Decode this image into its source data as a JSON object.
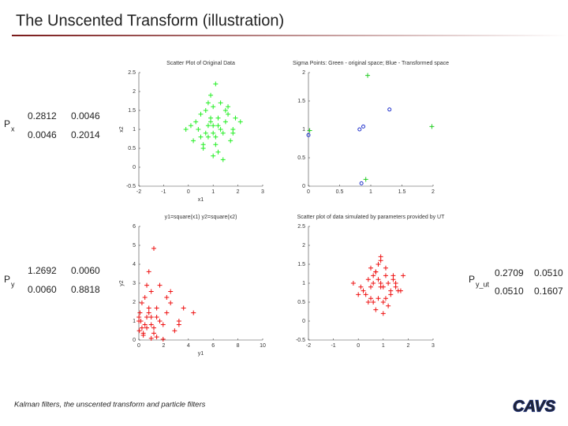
{
  "title": "The Unscented Transform (illustration)",
  "footer": "Kalman filters, the unscented transform and particle filters",
  "logo": "CAVS",
  "matrices": [
    {
      "symbol": "P",
      "subscript": "x",
      "rows": [
        [
          "0.2812",
          "0.0046"
        ],
        [
          "0.0046",
          "0.2014"
        ]
      ]
    },
    {
      "symbol": "P",
      "subscript": "y",
      "rows": [
        [
          "1.2692",
          "0.0060"
        ],
        [
          "0.0060",
          "0.8818"
        ]
      ]
    },
    {
      "symbol": "P",
      "subscript": "y_ut",
      "rows": [
        [
          "0.2709",
          "0.0510"
        ],
        [
          "0.0510",
          "0.1607"
        ]
      ]
    }
  ],
  "chart_data": [
    {
      "type": "scatter",
      "title": "Scatter Plot of Original Data",
      "x_label": "x1",
      "y_label": "x2",
      "xlim": [
        -2,
        3
      ],
      "xticks": [
        -2,
        -1,
        0,
        1,
        2,
        3
      ],
      "ylim": [
        -0.5,
        2.5
      ],
      "yticks": [
        -0.5,
        0,
        0.5,
        1,
        1.5,
        2,
        2.5
      ],
      "series": [
        {
          "color": "#22ee22",
          "marker": "+",
          "x": [
            1.2,
            0.5,
            1.6,
            0.9,
            1.1,
            0.3,
            1.8,
            1.0,
            0.7,
            1.4,
            0.2,
            1.3,
            0.8,
            1.9,
            1.1,
            0.6,
            1.5,
            0.4,
            1.0,
            1.7,
            0.9,
            1.2,
            0.1,
            1.6,
            0.8,
            1.3,
            2.1,
            0.5,
            1.0,
            1.4,
            0.7,
            1.2,
            -0.1,
            1.1,
            0.9,
            1.5,
            0.6,
            1.8,
            1.0,
            0.8
          ],
          "values": [
            1.1,
            0.8,
            1.4,
            1.9,
            0.6,
            1.2,
            1.0,
            0.3,
            1.5,
            0.9,
            0.7,
            1.7,
            1.1,
            1.3,
            2.2,
            0.5,
            1.2,
            1.0,
            0.9,
            0.7,
            1.3,
            0.4,
            1.1,
            1.6,
            0.8,
            1.0,
            1.2,
            1.4,
            1.6,
            0.2,
            0.9,
            1.3,
            1.0,
            0.8,
            1.2,
            1.5,
            0.6,
            0.9,
            1.1,
            1.7
          ]
        }
      ]
    },
    {
      "type": "scatter",
      "title": "Sigma Points: Green - original space; Blue - Transformed space",
      "xlim": [
        0,
        2
      ],
      "xticks": [
        0,
        0.5,
        1,
        1.5,
        2
      ],
      "ylim": [
        0,
        2
      ],
      "yticks": [
        0,
        0.5,
        1,
        1.5,
        2
      ],
      "series": [
        {
          "color": "#22cc22",
          "marker": "+",
          "x": [
            0.02,
            1.98,
            0.95,
            0.92
          ],
          "values": [
            0.98,
            1.05,
            1.95,
            0.12
          ]
        },
        {
          "color": "#2233cc",
          "marker": "o",
          "x": [
            0.0,
            0.82,
            0.88,
            1.3,
            0.85
          ],
          "values": [
            0.9,
            1.0,
            1.05,
            1.35,
            0.05
          ]
        }
      ]
    },
    {
      "type": "scatter",
      "title": "y1=square(x1)  y2=square(x2)",
      "x_label": "y1",
      "y_label": "y2",
      "xlim": [
        0,
        10
      ],
      "xticks": [
        0,
        2,
        4,
        6,
        8,
        10
      ],
      "ylim": [
        0,
        6
      ],
      "yticks": [
        0,
        1,
        2,
        3,
        4,
        5,
        6
      ],
      "series": [
        {
          "color": "#ee1111",
          "marker": "+",
          "x": [
            1.44,
            0.25,
            2.56,
            0.81,
            1.21,
            0.09,
            3.24,
            1.0,
            0.49,
            1.96,
            0.04,
            1.69,
            0.64,
            3.61,
            1.21,
            0.36,
            2.25,
            0.16,
            1.0,
            2.89,
            0.81,
            1.44,
            0.01,
            2.56,
            0.64,
            1.69,
            4.41,
            0.25,
            1.0,
            1.96,
            0.49,
            1.44,
            0.01,
            1.21,
            0.81,
            2.25,
            0.36,
            3.24,
            1.0,
            0.64
          ],
          "values": [
            1.21,
            0.64,
            1.96,
            3.61,
            0.36,
            1.44,
            1.0,
            0.09,
            2.25,
            0.81,
            0.49,
            2.89,
            1.21,
            1.69,
            4.84,
            0.25,
            1.44,
            1.0,
            0.81,
            0.49,
            1.69,
            0.16,
            1.21,
            2.56,
            0.64,
            1.0,
            1.44,
            1.96,
            2.56,
            0.04,
            0.81,
            1.69,
            1.0,
            0.64,
            1.44,
            2.25,
            0.36,
            0.81,
            1.21,
            2.89
          ]
        }
      ]
    },
    {
      "type": "scatter",
      "title": "Scatter plot of data simulated by parameters provided by UT",
      "xlim": [
        -2,
        3
      ],
      "xticks": [
        -2,
        -1,
        0,
        1,
        2,
        3
      ],
      "ylim": [
        -0.5,
        2.5
      ],
      "yticks": [
        -0.5,
        0,
        0.5,
        1,
        1.5,
        2,
        2.5
      ],
      "series": [
        {
          "color": "#ee1111",
          "marker": "+",
          "x": [
            0.9,
            0.4,
            1.3,
            0.7,
            1.0,
            0.2,
            1.5,
            0.8,
            0.5,
            1.1,
            0.1,
            1.2,
            0.6,
            1.6,
            0.9,
            0.3,
            1.4,
            0.7,
            1.0,
            1.8,
            0.8,
            1.1,
            -0.2,
            1.3,
            0.6,
            1.0,
            0.5,
            0.9,
            1.2,
            0.4,
            0.7,
            1.5,
            0.0,
            0.8,
            1.1,
            1.4,
            0.5,
            1.7,
            0.9,
            0.6
          ],
          "values": [
            0.9,
            1.1,
            0.7,
            1.3,
            0.5,
            0.8,
            1.0,
            1.5,
            0.6,
            1.2,
            0.9,
            0.4,
            1.0,
            0.8,
            1.6,
            0.7,
            1.1,
            0.3,
            0.9,
            1.2,
            0.6,
            1.4,
            1.0,
            0.8,
            1.2,
            0.2,
            0.9,
            1.7,
            1.0,
            0.5,
            1.3,
            0.9,
            0.7,
            1.1,
            0.6,
            1.2,
            1.4,
            0.8,
            1.0,
            0.5
          ]
        }
      ]
    }
  ]
}
